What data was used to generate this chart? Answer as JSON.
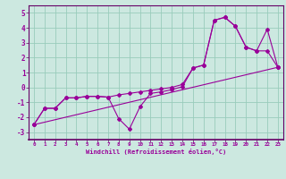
{
  "xlabel": "Windchill (Refroidissement éolien,°C)",
  "bg_color": "#cce8e0",
  "grid_color": "#99ccbb",
  "line_color": "#990099",
  "spine_color": "#660066",
  "x_ticks": [
    0,
    1,
    2,
    3,
    4,
    5,
    6,
    7,
    8,
    9,
    10,
    11,
    12,
    13,
    14,
    15,
    16,
    17,
    18,
    19,
    20,
    21,
    22,
    23
  ],
  "ylim": [
    -3.5,
    5.5
  ],
  "yticks": [
    -3,
    -2,
    -1,
    0,
    1,
    2,
    3,
    4,
    5
  ],
  "line1_x": [
    0,
    1,
    2,
    3,
    4,
    5,
    6,
    7,
    8,
    9,
    10,
    11,
    12,
    13,
    14,
    15,
    16,
    17,
    18,
    19,
    20,
    21,
    22,
    23
  ],
  "line1_y": [
    -2.5,
    -1.4,
    -1.4,
    -0.7,
    -0.7,
    -0.6,
    -0.6,
    -0.65,
    -2.1,
    -2.8,
    -1.3,
    -0.4,
    -0.3,
    -0.15,
    0.05,
    1.3,
    1.5,
    4.5,
    4.7,
    4.1,
    2.7,
    2.45,
    2.45,
    1.35
  ],
  "line2_x": [
    0,
    1,
    2,
    3,
    4,
    5,
    6,
    7,
    8,
    9,
    10,
    11,
    12,
    13,
    14,
    15,
    16,
    17,
    18,
    19,
    20,
    21,
    22,
    23
  ],
  "line2_y": [
    -2.5,
    -1.4,
    -1.4,
    -0.7,
    -0.7,
    -0.6,
    -0.6,
    -0.65,
    -0.5,
    -0.4,
    -0.3,
    -0.2,
    -0.1,
    0.0,
    0.2,
    1.3,
    1.5,
    4.5,
    4.7,
    4.1,
    2.7,
    2.45,
    3.9,
    1.35
  ],
  "line3_x": [
    0,
    23
  ],
  "line3_y": [
    -2.5,
    1.35
  ]
}
